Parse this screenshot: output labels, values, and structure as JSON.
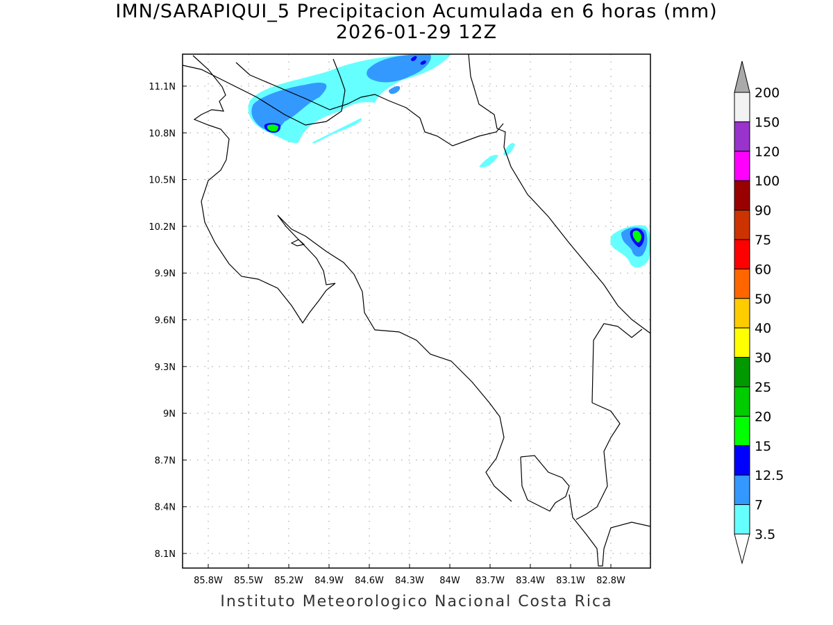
{
  "header": {
    "title": "IMN/SARAPIQUI_5 Precipitacion Acumulada en 6 horas (mm)",
    "subtitle": "2026-01-29 12Z"
  },
  "footer": {
    "credit": "Instituto Meteorologico Nacional Costa Rica"
  },
  "map": {
    "lon_ticks": [
      "85.8W",
      "85.5W",
      "85.2W",
      "84.9W",
      "84.6W",
      "84.3W",
      "84W",
      "83.7W",
      "83.4W",
      "83.1W",
      "82.8W"
    ],
    "lat_ticks": [
      "11.1N",
      "10.8N",
      "10.5N",
      "10.2N",
      "9.9N",
      "9.6N",
      "9.3N",
      "9N",
      "8.7N",
      "8.4N",
      "8.1N"
    ]
  },
  "legend": {
    "labels": [
      "200",
      "150",
      "120",
      "100",
      "90",
      "75",
      "60",
      "50",
      "40",
      "30",
      "25",
      "20",
      "15",
      "12.5",
      "7",
      "3.5"
    ],
    "colors": [
      "#f2f2f2",
      "#9933cc",
      "#ff00ff",
      "#990000",
      "#cc3300",
      "#ff0000",
      "#ff6600",
      "#ffcc00",
      "#ffff00",
      "#009900",
      "#00cc00",
      "#00ff00",
      "#0000ff",
      "#3399ff",
      "#66ffff"
    ],
    "over_color": "#aaaaaa",
    "under_color": "#ffffff"
  }
}
